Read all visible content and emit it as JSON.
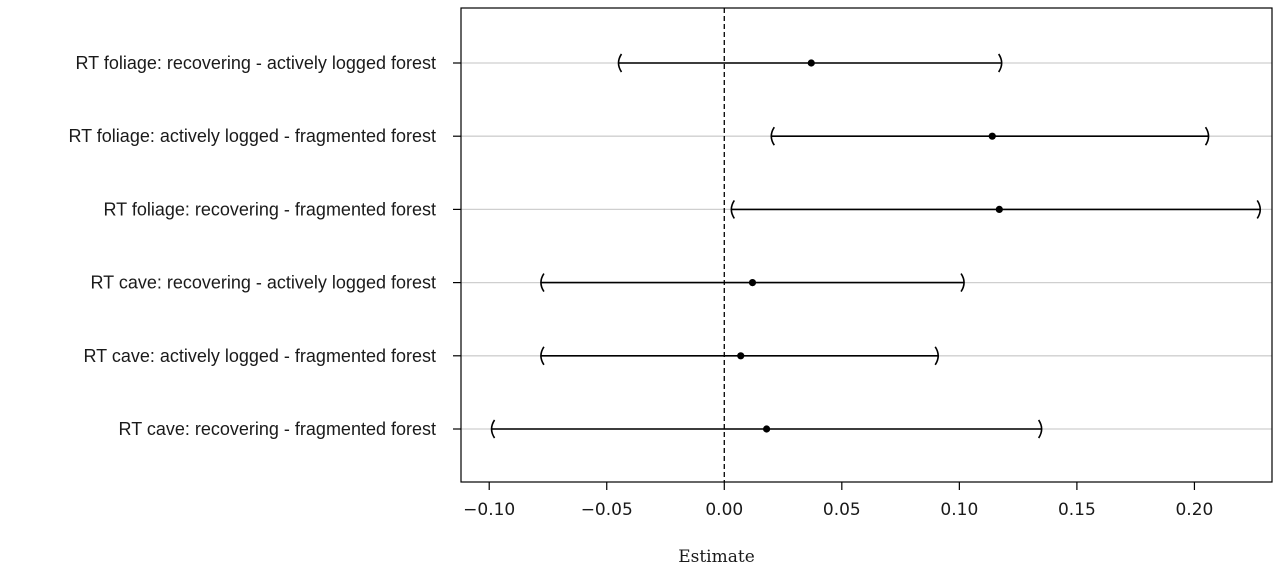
{
  "chart_data": {
    "type": "forest",
    "xlabel": "Estimate",
    "xlim": [
      -0.112,
      0.233
    ],
    "xticks": [
      -0.1,
      -0.05,
      0.0,
      0.05,
      0.1,
      0.15,
      0.2
    ],
    "xtick_labels": [
      "−0.10",
      "−0.05",
      "0.00",
      "0.05",
      "0.10",
      "0.15",
      "0.20"
    ],
    "reference_line": 0.0,
    "grid": "horizontal",
    "rows": [
      {
        "label": "RT foliage: recovering - actively logged forest",
        "estimate": 0.037,
        "lower": -0.045,
        "upper": 0.118
      },
      {
        "label": "RT foliage: actively logged - fragmented forest",
        "estimate": 0.114,
        "lower": 0.02,
        "upper": 0.206
      },
      {
        "label": "RT foliage: recovering - fragmented forest",
        "estimate": 0.117,
        "lower": 0.003,
        "upper": 0.228
      },
      {
        "label": "RT cave: recovering - actively logged forest",
        "estimate": 0.012,
        "lower": -0.078,
        "upper": 0.102
      },
      {
        "label": "RT cave: actively logged - fragmented forest",
        "estimate": 0.007,
        "lower": -0.078,
        "upper": 0.091
      },
      {
        "label": "RT cave: recovering - fragmented forest",
        "estimate": 0.018,
        "lower": -0.099,
        "upper": 0.135
      }
    ]
  }
}
